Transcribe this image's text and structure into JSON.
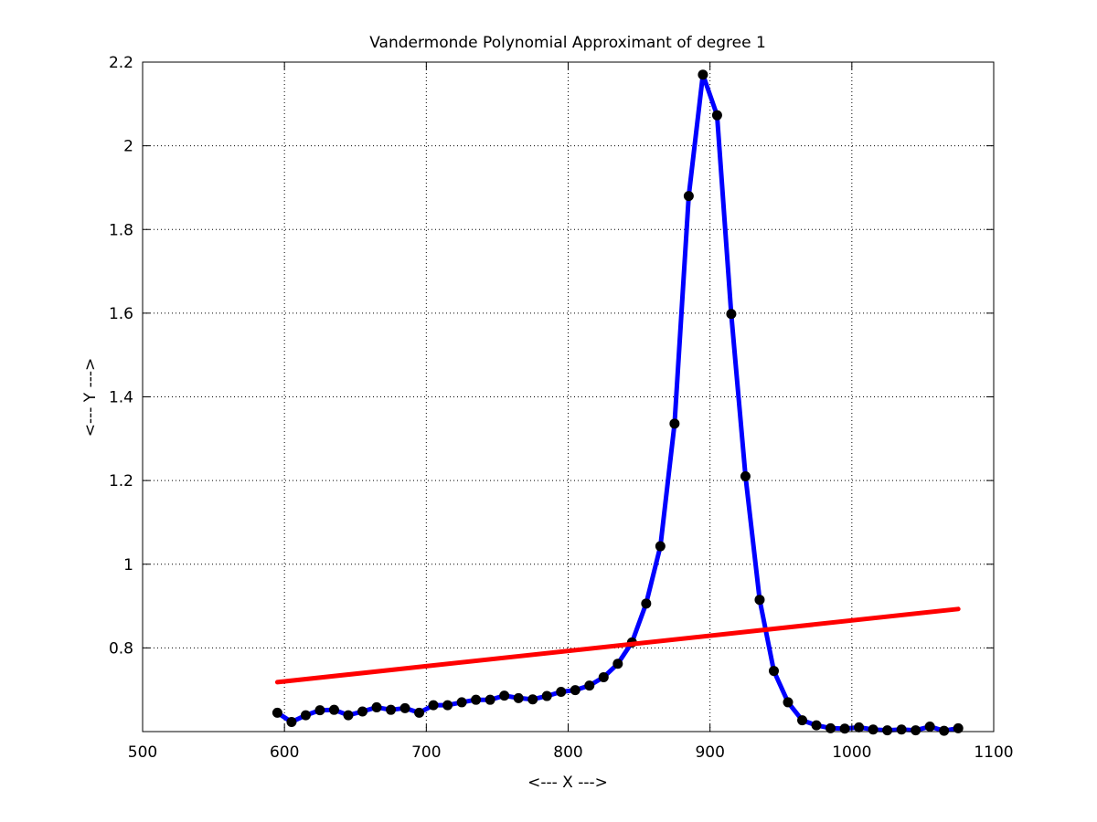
{
  "chart_data": {
    "type": "line",
    "title": "Vandermonde Polynomial Approximant of degree 1",
    "xlabel": "<--- X --->",
    "ylabel": "<--- Y --->",
    "xlim": [
      500,
      1100
    ],
    "ylim": [
      0.6,
      2.2
    ],
    "xticks": [
      500,
      600,
      700,
      800,
      900,
      1000,
      1100
    ],
    "xtick_labels": [
      "500",
      "600",
      "700",
      "800",
      "900",
      "1000",
      "1100"
    ],
    "yticks": [
      0.8,
      1.0,
      1.2,
      1.4,
      1.6,
      1.8,
      2.0,
      2.2
    ],
    "ytick_labels": [
      "0.8",
      "1",
      "1.2",
      "1.4",
      "1.6",
      "1.8",
      "2",
      "2.2"
    ],
    "grid": true,
    "series": [
      {
        "color": "#0000ff",
        "marker_color": "#000000",
        "style": "line-with-markers",
        "x": [
          595,
          605,
          615,
          625,
          635,
          645,
          655,
          665,
          675,
          685,
          695,
          705,
          715,
          725,
          735,
          745,
          755,
          765,
          775,
          785,
          795,
          805,
          815,
          825,
          835,
          845,
          855,
          865,
          875,
          885,
          895,
          905,
          915,
          925,
          935,
          945,
          955,
          965,
          975,
          985,
          995,
          1005,
          1015,
          1025,
          1035,
          1045,
          1055,
          1065,
          1075
        ],
        "y": [
          0.645,
          0.623,
          0.639,
          0.651,
          0.652,
          0.639,
          0.648,
          0.658,
          0.652,
          0.656,
          0.645,
          0.663,
          0.663,
          0.67,
          0.676,
          0.676,
          0.686,
          0.68,
          0.677,
          0.685,
          0.695,
          0.699,
          0.71,
          0.73,
          0.762,
          0.813,
          0.906,
          1.043,
          1.336,
          1.88,
          2.17,
          2.073,
          1.598,
          1.21,
          0.915,
          0.745,
          0.67,
          0.627,
          0.615,
          0.608,
          0.607,
          0.61,
          0.605,
          0.603,
          0.605,
          0.603,
          0.612,
          0.602,
          0.608
        ]
      },
      {
        "color": "#ff0000",
        "style": "line",
        "x": [
          595,
          1075
        ],
        "y": [
          0.718,
          0.893
        ]
      }
    ]
  }
}
